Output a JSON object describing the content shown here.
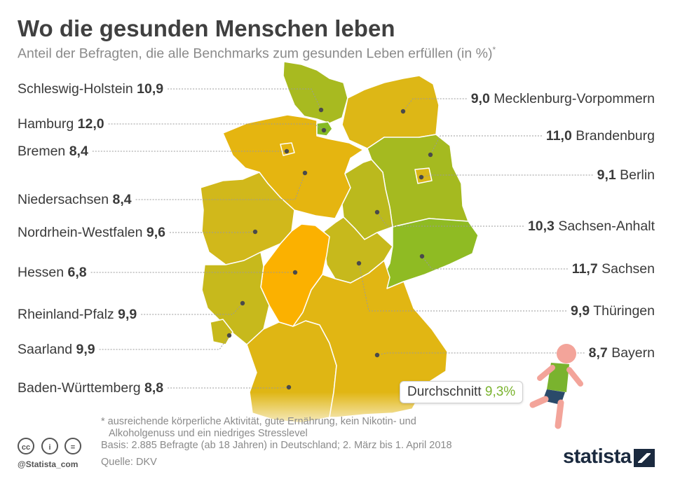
{
  "header": {
    "title": "Wo die gesunden Menschen leben",
    "subtitle": "Anteil der Befragten, die alle Benchmarks zum gesunden Leben erfüllen (in %)",
    "subtitle_mark": "*"
  },
  "chart_data": {
    "type": "choropleth-map",
    "title": "Wo die gesunden Menschen leben",
    "subtitle": "Anteil der Befragten, die alle Benchmarks zum gesunden Leben erfüllen (in %)",
    "unit": "%",
    "color_scale": {
      "low": "#fbb100",
      "mid": "#d7b81a",
      "high": "#86bb24"
    },
    "regions": [
      {
        "name": "Schleswig-Holstein",
        "value": 10.9,
        "value_label": "10,9"
      },
      {
        "name": "Hamburg",
        "value": 12.0,
        "value_label": "12,0"
      },
      {
        "name": "Bremen",
        "value": 8.4,
        "value_label": "8,4"
      },
      {
        "name": "Niedersachsen",
        "value": 8.4,
        "value_label": "8,4"
      },
      {
        "name": "Nordrhein-Westfalen",
        "value": 9.6,
        "value_label": "9,6"
      },
      {
        "name": "Hessen",
        "value": 6.8,
        "value_label": "6,8"
      },
      {
        "name": "Rheinland-Pfalz",
        "value": 9.9,
        "value_label": "9,9"
      },
      {
        "name": "Saarland",
        "value": 9.9,
        "value_label": "9,9"
      },
      {
        "name": "Baden-Württemberg",
        "value": 8.8,
        "value_label": "8,8"
      },
      {
        "name": "Mecklenburg-Vorpommern",
        "value": 9.0,
        "value_label": "9,0"
      },
      {
        "name": "Brandenburg",
        "value": 11.0,
        "value_label": "11,0"
      },
      {
        "name": "Berlin",
        "value": 9.1,
        "value_label": "9,1"
      },
      {
        "name": "Sachsen-Anhalt",
        "value": 10.3,
        "value_label": "10,3"
      },
      {
        "name": "Sachsen",
        "value": 11.7,
        "value_label": "11,7"
      },
      {
        "name": "Thüringen",
        "value": 9.9,
        "value_label": "9,9"
      },
      {
        "name": "Bayern",
        "value": 8.7,
        "value_label": "8,7"
      }
    ],
    "average": {
      "label": "Durchschnitt",
      "value": 9.3,
      "value_label": "9,3%"
    }
  },
  "footer": {
    "footnote_line1": "* ausreichende körperliche Aktivität, gute Ernährung, kein Nikotin- und",
    "footnote_line2": "Alkoholgenuss und ein niedriges Stresslevel",
    "basis": "Basis: 2.885 Befragte (ab 18 Jahren) in Deutschland; 2. März bis 1. April 2018",
    "source": "Quelle: DKV",
    "handle": "@Statista_com",
    "brand": "statista",
    "license_icons": [
      "cc-icon",
      "by-icon",
      "nd-icon"
    ],
    "license_labels": [
      "cc",
      "i",
      "="
    ]
  }
}
